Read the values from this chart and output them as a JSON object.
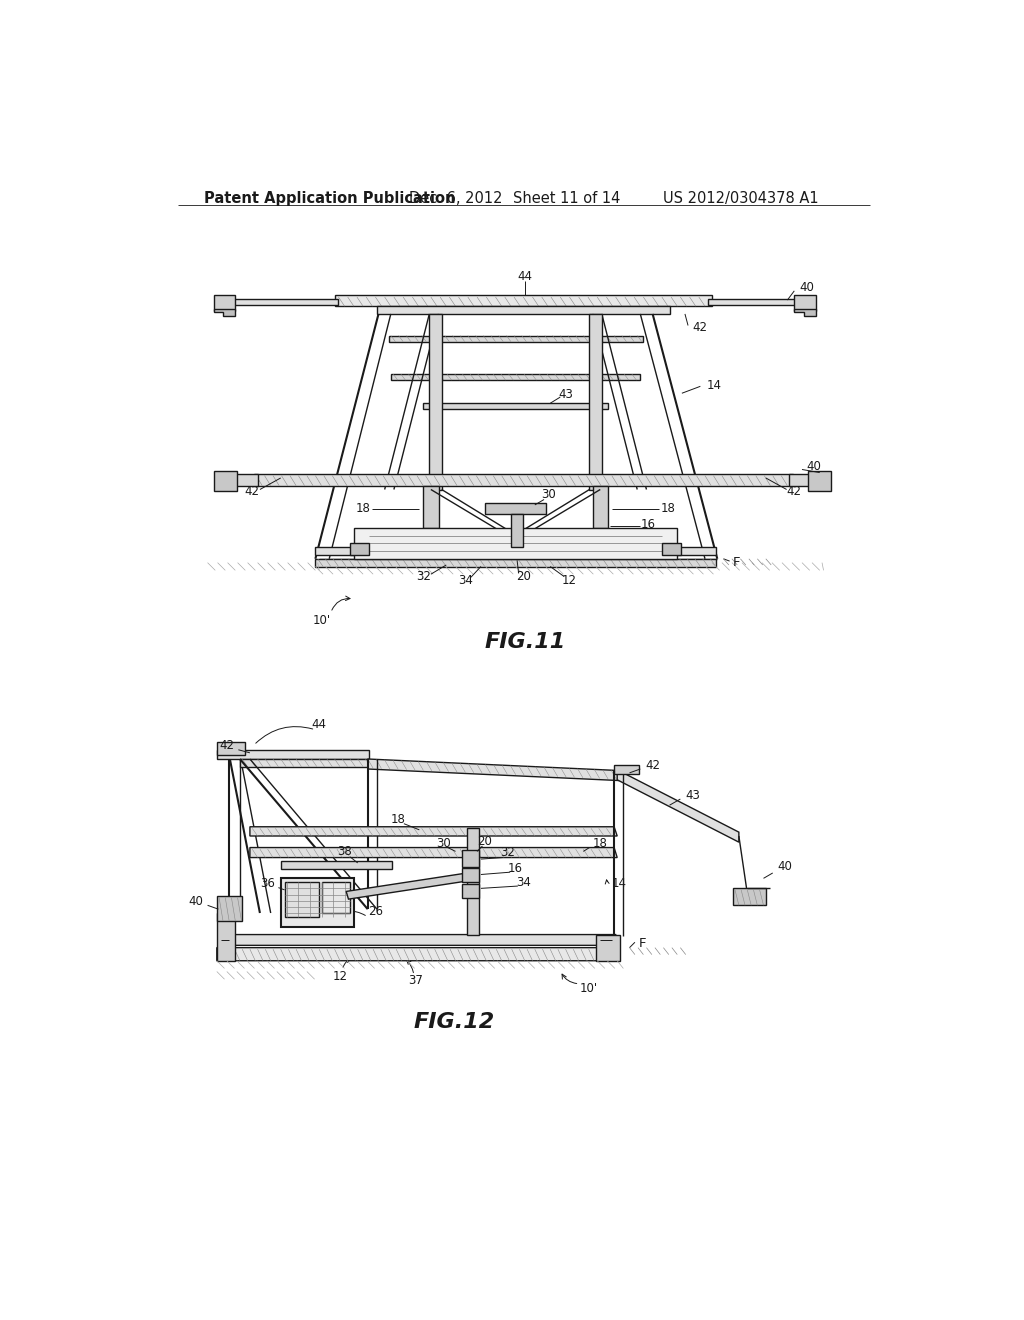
{
  "page_bg": "#ffffff",
  "header_text": "Patent Application Publication",
  "header_date": "Dec. 6, 2012",
  "header_sheet": "Sheet 11 of 14",
  "header_patent": "US 2012/0304378 A1",
  "fig11_caption": "FIG.11",
  "fig12_caption": "FIG.12",
  "lc": "#1a1a1a",
  "lc_gray": "#888888",
  "lc_med": "#555555",
  "font_size_header": 10.5,
  "font_size_label": 8.5,
  "font_size_fig": 15
}
